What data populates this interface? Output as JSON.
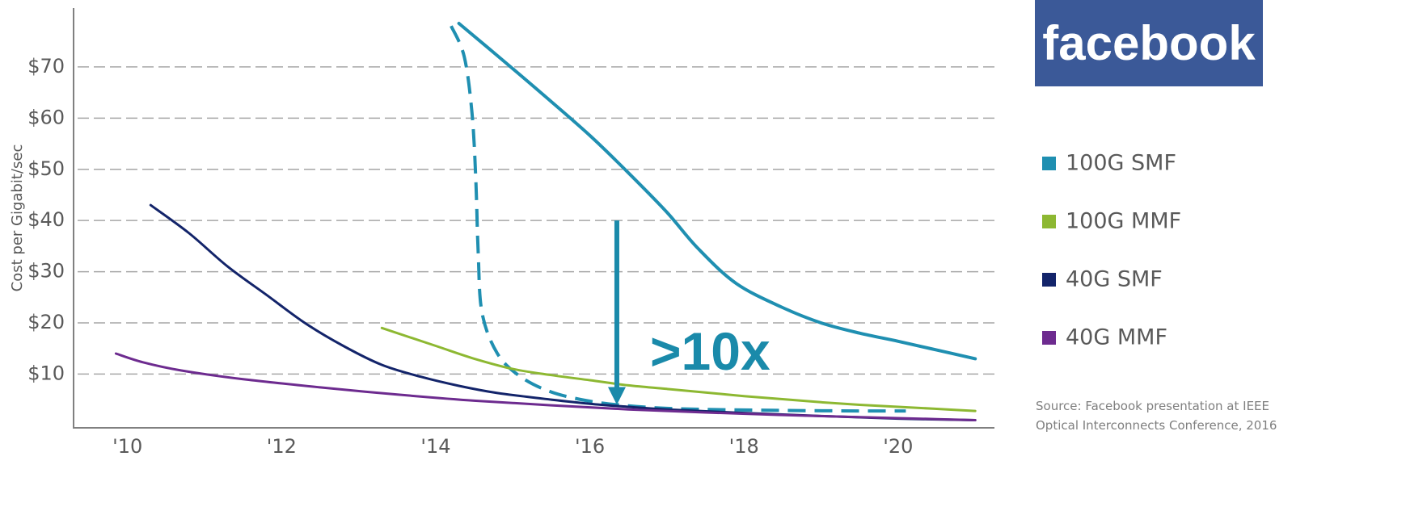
{
  "logo": {
    "text": "facebook",
    "bg_color": "#3b5998"
  },
  "source_lines": [
    "Source: Facebook presentation at IEEE",
    "Optical Interconnects Conference, 2016"
  ],
  "annotation": {
    "text": ">10x",
    "color": "#1a8aaa",
    "x": 2016.35,
    "y_from": 40,
    "y_to": 4
  },
  "chart_data": {
    "type": "line",
    "title": "",
    "xlabel": "",
    "ylabel": "Cost per Gigabit/sec",
    "xlim": [
      2009.3,
      2021.25
    ],
    "ylim": [
      -0.5,
      81.5
    ],
    "x_ticks": [
      {
        "value": 2010,
        "label": "'10"
      },
      {
        "value": 2012,
        "label": "'12"
      },
      {
        "value": 2014,
        "label": "'14"
      },
      {
        "value": 2016,
        "label": "'16"
      },
      {
        "value": 2018,
        "label": "'18"
      },
      {
        "value": 2020,
        "label": "'20"
      }
    ],
    "y_ticks": [
      {
        "value": 10,
        "label": "$10"
      },
      {
        "value": 20,
        "label": "$20"
      },
      {
        "value": 30,
        "label": "$30"
      },
      {
        "value": 40,
        "label": "$40"
      },
      {
        "value": 50,
        "label": "$50"
      },
      {
        "value": 60,
        "label": "$60"
      },
      {
        "value": 70,
        "label": "$70"
      }
    ],
    "grid": "horizontal-dashed",
    "legend": {
      "position": "right",
      "entries": [
        {
          "label": "100G SMF",
          "color": "#1f8fb1"
        },
        {
          "label": "100G MMF",
          "color": "#8db832"
        },
        {
          "label": "40G SMF",
          "color": "#13246a"
        },
        {
          "label": "40G MMF",
          "color": "#6d2b8f"
        }
      ]
    },
    "series": [
      {
        "name": "100G SMF",
        "color": "#1f8fb1",
        "dashed": false,
        "points": [
          [
            2014.3,
            78.5
          ],
          [
            2014.8,
            72.2
          ],
          [
            2015.4,
            64.5
          ],
          [
            2016.0,
            56.6
          ],
          [
            2016.5,
            49.3
          ],
          [
            2017.0,
            41.6
          ],
          [
            2017.4,
            34.6
          ],
          [
            2017.9,
            27.7
          ],
          [
            2018.5,
            23.0
          ],
          [
            2019.0,
            20.0
          ],
          [
            2019.5,
            18.0
          ],
          [
            2020.0,
            16.4
          ],
          [
            2020.5,
            14.7
          ],
          [
            2021.0,
            13.0
          ]
        ]
      },
      {
        "name": "100G SMF",
        "color": "#1f8fb1",
        "dashed": true,
        "points": [
          [
            2014.2,
            78.0
          ],
          [
            2014.37,
            72.0
          ],
          [
            2014.47,
            61.0
          ],
          [
            2014.52,
            48.0
          ],
          [
            2014.55,
            34.0
          ],
          [
            2014.6,
            22.0
          ],
          [
            2014.8,
            14.0
          ],
          [
            2015.1,
            9.5
          ],
          [
            2015.5,
            6.5
          ],
          [
            2016.0,
            4.7
          ],
          [
            2016.5,
            3.8
          ],
          [
            2017.0,
            3.3
          ],
          [
            2017.5,
            3.1
          ],
          [
            2018.5,
            2.9
          ],
          [
            2019.5,
            2.8
          ],
          [
            2020.1,
            2.8
          ]
        ]
      },
      {
        "name": "100G MMF",
        "color": "#8db832",
        "dashed": false,
        "points": [
          [
            2013.3,
            19.0
          ],
          [
            2014.0,
            15.5
          ],
          [
            2014.5,
            13.0
          ],
          [
            2015.0,
            11.0
          ],
          [
            2015.5,
            9.8
          ],
          [
            2016.0,
            8.8
          ],
          [
            2016.5,
            7.8
          ],
          [
            2017.0,
            7.1
          ],
          [
            2017.5,
            6.4
          ],
          [
            2018.0,
            5.7
          ],
          [
            2018.5,
            5.1
          ],
          [
            2019.0,
            4.5
          ],
          [
            2019.5,
            4.0
          ],
          [
            2020.0,
            3.6
          ],
          [
            2020.5,
            3.2
          ],
          [
            2021.0,
            2.8
          ]
        ]
      },
      {
        "name": "40G SMF",
        "color": "#13246a",
        "dashed": false,
        "points": [
          [
            2010.3,
            43.0
          ],
          [
            2010.8,
            37.5
          ],
          [
            2011.3,
            31.0
          ],
          [
            2011.8,
            25.5
          ],
          [
            2012.3,
            20.0
          ],
          [
            2012.8,
            15.5
          ],
          [
            2013.3,
            11.8
          ],
          [
            2013.8,
            9.5
          ],
          [
            2014.3,
            7.7
          ],
          [
            2014.8,
            6.3
          ],
          [
            2015.5,
            5.0
          ],
          [
            2016.0,
            4.2
          ],
          [
            2016.5,
            3.6
          ],
          [
            2017.0,
            3.1
          ],
          [
            2018.0,
            2.4
          ],
          [
            2019.0,
            1.8
          ],
          [
            2020.0,
            1.3
          ],
          [
            2021.0,
            1.0
          ]
        ]
      },
      {
        "name": "40G MMF",
        "color": "#6d2b8f",
        "dashed": false,
        "points": [
          [
            2009.85,
            14.0
          ],
          [
            2010.2,
            12.3
          ],
          [
            2010.7,
            10.7
          ],
          [
            2011.5,
            9.0
          ],
          [
            2012.5,
            7.4
          ],
          [
            2013.5,
            6.0
          ],
          [
            2014.5,
            4.8
          ],
          [
            2015.5,
            3.9
          ],
          [
            2016.5,
            3.1
          ],
          [
            2017.5,
            2.5
          ],
          [
            2018.5,
            2.0
          ],
          [
            2019.5,
            1.6
          ],
          [
            2020.5,
            1.2
          ],
          [
            2021.0,
            1.0
          ]
        ]
      }
    ]
  }
}
